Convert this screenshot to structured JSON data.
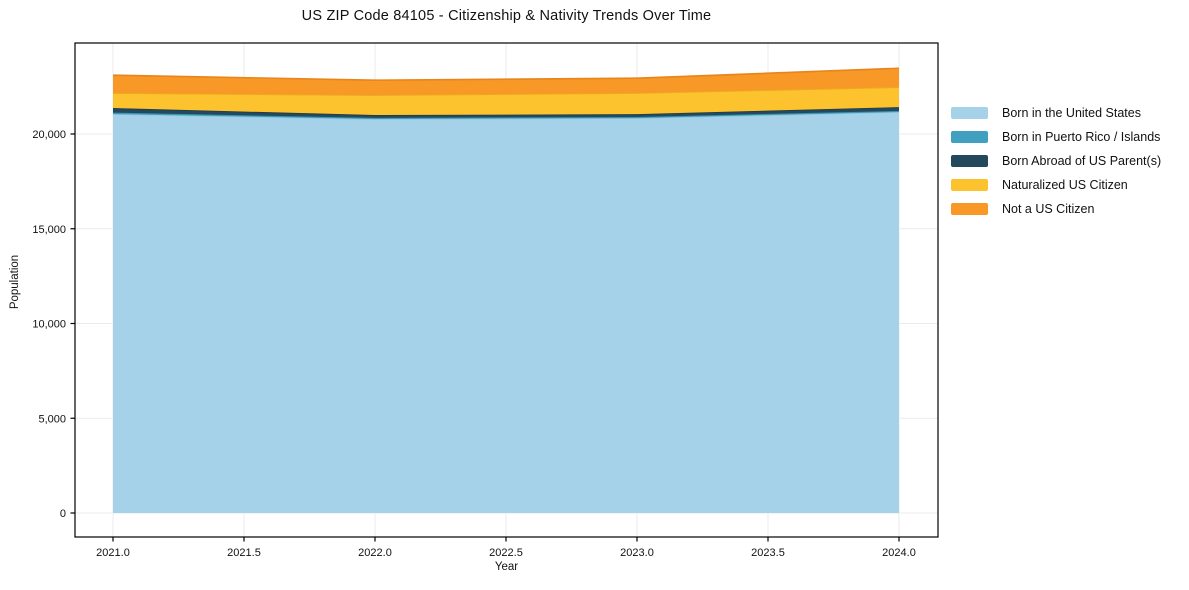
{
  "chart_data": {
    "type": "area",
    "stacked": true,
    "title": "US ZIP Code 84105 - Citizenship & Nativity Trends Over Time",
    "xlabel": "Year",
    "ylabel": "Population",
    "x": [
      2021,
      2022,
      2023,
      2024
    ],
    "series": [
      {
        "name": "Born in the United States",
        "color": "#A5D2E9",
        "edge": "#8FC4DE",
        "values": [
          21050,
          20790,
          20840,
          21160
        ]
      },
      {
        "name": "Born in Puerto Rico / Islands",
        "color": "#41A0BF",
        "edge": "#3892B1",
        "values": [
          80,
          60,
          60,
          60
        ]
      },
      {
        "name": "Born Abroad of US Parent(s)",
        "color": "#24495C",
        "edge": "#1D3D4E",
        "values": [
          240,
          150,
          150,
          200
        ]
      },
      {
        "name": "Naturalized US Citizen",
        "color": "#FDC32E",
        "edge": "#EAAE1E",
        "values": [
          790,
          1050,
          1110,
          1050
        ]
      },
      {
        "name": "Not a US Citizen",
        "color": "#F89827",
        "edge": "#E7841B",
        "values": [
          945,
          790,
          785,
          1000
        ]
      }
    ],
    "xticks": [
      2021.0,
      2021.5,
      2022.0,
      2022.5,
      2023.0,
      2023.5,
      2024.0
    ],
    "xtick_labels": [
      "2021.0",
      "2021.5",
      "2022.0",
      "2022.5",
      "2023.0",
      "2023.5",
      "2024.0"
    ],
    "yticks": [
      0,
      5000,
      10000,
      15000,
      20000
    ],
    "ytick_labels": [
      "0",
      "5,000",
      "10,000",
      "15,000",
      "20,000"
    ],
    "xlim": [
      2020.85,
      2024.15
    ],
    "ylim": [
      -1250,
      24950
    ],
    "grid": true,
    "grid_color": "#ebebeb",
    "spine_color": "#000000",
    "tick_label_color": "#111111",
    "legend_position": "right"
  }
}
